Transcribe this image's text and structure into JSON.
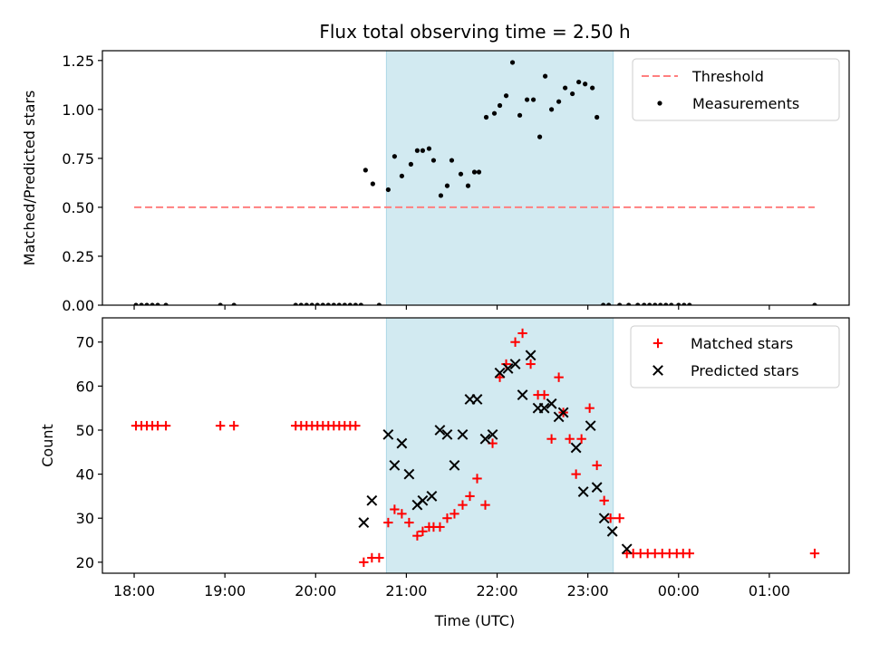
{
  "chart_data": {
    "type": "scatter",
    "title": "Flux total observing time = 2.50 h",
    "xlabel": "Time (UTC)",
    "x_tick_labels": [
      "18:00",
      "19:00",
      "20:00",
      "21:00",
      "22:00",
      "23:00",
      "00:00",
      "01:00"
    ],
    "x_tick_hours": [
      18,
      19,
      20,
      21,
      22,
      23,
      24,
      25
    ],
    "xlim_hours": [
      17.65,
      25.88
    ],
    "shaded_span_hours": [
      20.78,
      23.28
    ],
    "shaded_color": "#add8e6",
    "panels": [
      {
        "ylabel": "Matched/Predicted stars",
        "ylim": [
          0,
          1.3
        ],
        "y_ticks": [
          "0.00",
          "0.25",
          "0.50",
          "0.75",
          "1.00",
          "1.25"
        ],
        "legend": {
          "position": "top-right",
          "entries": [
            "Threshold",
            "Measurements"
          ]
        },
        "series": [
          {
            "name": "Threshold",
            "kind": "line",
            "color": "#ff7f7f",
            "x": [
              18.0,
              25.5
            ],
            "y": [
              0.5,
              0.5
            ]
          },
          {
            "name": "Measurements",
            "kind": "dots",
            "color": "#000000",
            "x": [
              18.02,
              18.08,
              18.14,
              18.2,
              18.26,
              18.35,
              18.95,
              19.1,
              19.78,
              19.84,
              19.9,
              19.96,
              20.02,
              20.08,
              20.14,
              20.2,
              20.26,
              20.32,
              20.38,
              20.44,
              20.5,
              20.7,
              20.55,
              20.63,
              20.8,
              20.87,
              20.95,
              21.05,
              21.12,
              21.18,
              21.25,
              21.3,
              21.38,
              21.45,
              21.5,
              21.6,
              21.68,
              21.75,
              21.8,
              21.88,
              21.97,
              22.03,
              22.1,
              22.17,
              22.25,
              22.33,
              22.4,
              22.47,
              22.53,
              22.6,
              22.68,
              22.75,
              22.83,
              22.9,
              22.97,
              23.05,
              23.1,
              23.17,
              23.23,
              23.35,
              23.45,
              23.55,
              23.62,
              23.68,
              23.74,
              23.8,
              23.86,
              23.92,
              24.0,
              24.06,
              24.12,
              25.5
            ],
            "y": [
              0,
              0,
              0,
              0,
              0,
              0,
              0,
              0,
              0,
              0,
              0,
              0,
              0,
              0,
              0,
              0,
              0,
              0,
              0,
              0,
              0,
              0,
              0.69,
              0.62,
              0.59,
              0.76,
              0.66,
              0.72,
              0.79,
              0.79,
              0.8,
              0.74,
              0.56,
              0.61,
              0.74,
              0.67,
              0.61,
              0.68,
              0.68,
              0.96,
              0.98,
              1.02,
              1.07,
              1.24,
              0.97,
              1.05,
              1.05,
              0.86,
              1.17,
              1.0,
              1.04,
              1.11,
              1.08,
              1.14,
              1.13,
              1.11,
              0.96,
              0,
              0,
              0,
              0,
              0,
              0,
              0,
              0,
              0,
              0,
              0,
              0,
              0,
              0,
              0
            ]
          }
        ]
      },
      {
        "ylabel": "Count",
        "ylim": [
          17.5,
          75.5
        ],
        "y_ticks": [
          "20",
          "30",
          "40",
          "50",
          "60",
          "70"
        ],
        "legend": {
          "position": "top-right",
          "entries": [
            "Matched stars",
            "Predicted stars"
          ]
        },
        "series": [
          {
            "name": "Matched stars",
            "kind": "plus",
            "color": "#ff0000",
            "x": [
              18.02,
              18.08,
              18.14,
              18.2,
              18.26,
              18.35,
              18.95,
              19.1,
              19.78,
              19.84,
              19.9,
              19.96,
              20.02,
              20.08,
              20.14,
              20.2,
              20.26,
              20.32,
              20.38,
              20.44,
              20.53,
              20.62,
              20.7,
              20.8,
              20.87,
              20.95,
              21.03,
              21.12,
              21.18,
              21.25,
              21.3,
              21.37,
              21.45,
              21.53,
              21.62,
              21.7,
              21.78,
              21.87,
              21.95,
              22.03,
              22.1,
              22.2,
              22.28,
              22.37,
              22.45,
              22.52,
              22.6,
              22.68,
              22.73,
              22.8,
              22.87,
              22.93,
              23.02,
              23.1,
              23.18,
              23.25,
              23.35,
              23.43,
              23.5,
              23.58,
              23.66,
              23.74,
              23.82,
              23.9,
              23.98,
              24.05,
              24.12,
              25.5
            ],
            "y": [
              51,
              51,
              51,
              51,
              51,
              51,
              51,
              51,
              51,
              51,
              51,
              51,
              51,
              51,
              51,
              51,
              51,
              51,
              51,
              51,
              20,
              21,
              21,
              29,
              32,
              31,
              29,
              26,
              27,
              28,
              28,
              28,
              30,
              31,
              33,
              35,
              39,
              33,
              47,
              62,
              65,
              70,
              72,
              65,
              58,
              58,
              48,
              62,
              54,
              48,
              40,
              48,
              55,
              42,
              34,
              30,
              30,
              22,
              22,
              22,
              22,
              22,
              22,
              22,
              22,
              22,
              22,
              22
            ]
          },
          {
            "name": "Predicted stars",
            "kind": "x",
            "color": "#000000",
            "x": [
              20.53,
              20.62,
              20.8,
              20.87,
              20.95,
              21.03,
              21.12,
              21.18,
              21.28,
              21.37,
              21.45,
              21.53,
              21.62,
              21.7,
              21.78,
              21.87,
              21.95,
              22.03,
              22.12,
              22.2,
              22.28,
              22.37,
              22.45,
              22.52,
              22.6,
              22.68,
              22.73,
              22.87,
              22.95,
              23.03,
              23.1,
              23.18,
              23.27,
              23.43
            ],
            "y": [
              29,
              34,
              49,
              42,
              47,
              40,
              33,
              34,
              35,
              50,
              49,
              42,
              49,
              57,
              57,
              48,
              49,
              63,
              64,
              65,
              58,
              67,
              55,
              55,
              56,
              53,
              54,
              46,
              36,
              51,
              37,
              30,
              27,
              23
            ]
          }
        ]
      }
    ]
  }
}
